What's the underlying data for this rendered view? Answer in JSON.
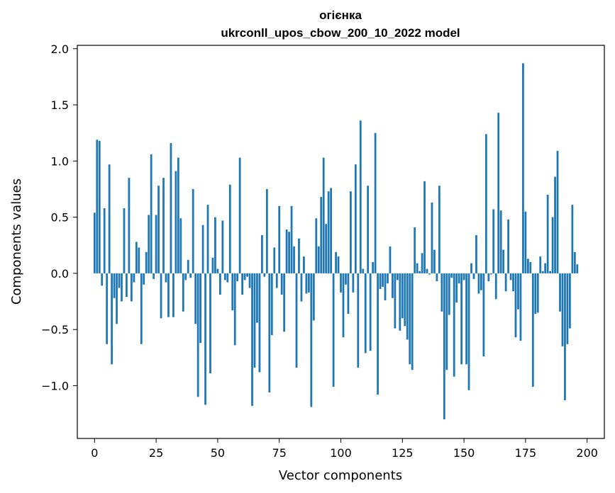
{
  "chart_data": {
    "type": "bar",
    "title_line1": "огієнка",
    "title_line2": "ukrconll_upos_cbow_200_10_2022 model",
    "xlabel": "Vector components",
    "ylabel": "Components values",
    "xlim": [
      -7,
      207
    ],
    "ylim": [
      -1.47,
      2.03
    ],
    "xticks": [
      0,
      25,
      50,
      75,
      100,
      125,
      150,
      175,
      200
    ],
    "yticks": [
      -1.0,
      -0.5,
      0.0,
      0.5,
      1.0,
      1.5,
      2.0
    ],
    "ytick_labels": [
      "−1.0",
      "−0.5",
      "0.0",
      "0.5",
      "1.0",
      "1.5",
      "2.0"
    ],
    "grid": false,
    "bar_color": "#1f77b4",
    "values": [
      0.54,
      1.19,
      1.18,
      -0.11,
      0.58,
      -0.63,
      0.97,
      -0.81,
      -0.22,
      -0.45,
      -0.13,
      -0.25,
      0.58,
      -0.21,
      0.85,
      -0.25,
      -0.08,
      0.28,
      0.23,
      -0.63,
      -0.1,
      0.19,
      0.52,
      1.06,
      -0.05,
      0.52,
      0.78,
      -0.4,
      0.85,
      -0.08,
      -0.39,
      1.16,
      -0.39,
      0.91,
      1.03,
      0.49,
      -0.34,
      -0.06,
      0.12,
      -0.04,
      0.75,
      -0.45,
      -1.1,
      -0.62,
      0.43,
      -1.17,
      0.61,
      -0.89,
      0.14,
      0.5,
      0.04,
      -0.19,
      0.47,
      -0.06,
      -0.08,
      0.79,
      -0.33,
      -0.64,
      -0.07,
      1.03,
      -0.19,
      -0.06,
      -0.03,
      -0.13,
      -1.18,
      -0.84,
      -0.44,
      -0.88,
      0.34,
      -0.03,
      0.75,
      -1.06,
      -0.55,
      0.23,
      -0.13,
      0.6,
      -0.19,
      -0.52,
      0.39,
      0.37,
      0.6,
      0.24,
      -0.84,
      0.31,
      -0.25,
      0.15,
      -0.18,
      -0.17,
      -1.19,
      -0.42,
      0.49,
      0.24,
      0.68,
      1.03,
      0.44,
      0.73,
      0.76,
      -1.01,
      0.19,
      0.15,
      -0.17,
      -0.57,
      -0.1,
      -0.36,
      0.73,
      -0.17,
      0.97,
      -0.84,
      1.36,
      0.04,
      -0.71,
      0.78,
      -0.69,
      0.1,
      1.25,
      -1.08,
      -0.14,
      -0.12,
      -0.24,
      -0.09,
      0.24,
      -0.22,
      -0.49,
      -0.06,
      -0.51,
      -0.4,
      -0.47,
      -0.59,
      -0.81,
      -0.86,
      0.41,
      0.09,
      0.02,
      0.18,
      0.82,
      0.04,
      -0.01,
      0.63,
      0.21,
      -0.07,
      0.78,
      -0.34,
      -1.3,
      -0.86,
      -0.37,
      -0.04,
      -0.92,
      -0.26,
      -0.09,
      -0.81,
      -0.06,
      -0.81,
      -1.04,
      0.09,
      -0.05,
      0.34,
      -0.18,
      -0.15,
      -0.74,
      1.24,
      -0.07,
      -0.01,
      0.57,
      -0.23,
      1.43,
      0.56,
      0.21,
      -0.16,
      0.48,
      -0.06,
      -0.16,
      -0.57,
      -0.32,
      -0.6,
      1.87,
      0.55,
      0.13,
      0.1,
      -1.01,
      -0.36,
      -0.35,
      0.15,
      0.02,
      0.09,
      0.7,
      0.02,
      0.5,
      0.86,
      1.09,
      -0.34,
      -0.65,
      -1.13,
      -0.63,
      -0.49,
      0.61,
      0.19,
      0.08
    ]
  }
}
